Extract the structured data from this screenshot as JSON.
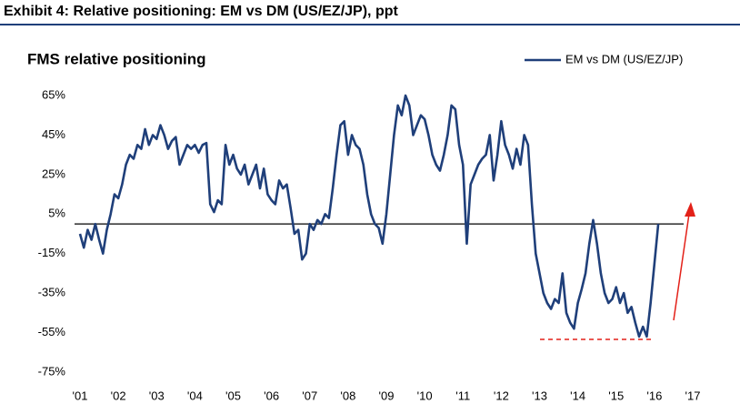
{
  "header": {
    "title": "Exhibit 4: Relative positioning: EM vs DM (US/EZ/JP), ppt"
  },
  "chart_data": {
    "type": "line",
    "title": "FMS relative positioning",
    "x": [
      2001.0,
      2001.1,
      2001.2,
      2001.3,
      2001.4,
      2001.5,
      2001.6,
      2001.7,
      2001.8,
      2001.9,
      2002.0,
      2002.1,
      2002.2,
      2002.3,
      2002.4,
      2002.5,
      2002.6,
      2002.7,
      2002.8,
      2002.9,
      2003.0,
      2003.1,
      2003.2,
      2003.3,
      2003.4,
      2003.5,
      2003.6,
      2003.7,
      2003.8,
      2003.9,
      2004.0,
      2004.1,
      2004.2,
      2004.3,
      2004.4,
      2004.5,
      2004.6,
      2004.7,
      2004.8,
      2004.9,
      2005.0,
      2005.1,
      2005.2,
      2005.3,
      2005.4,
      2005.5,
      2005.6,
      2005.7,
      2005.8,
      2005.9,
      2006.0,
      2006.1,
      2006.2,
      2006.3,
      2006.4,
      2006.5,
      2006.6,
      2006.7,
      2006.8,
      2006.9,
      2007.0,
      2007.1,
      2007.2,
      2007.3,
      2007.4,
      2007.5,
      2007.6,
      2007.7,
      2007.8,
      2007.9,
      2008.0,
      2008.1,
      2008.2,
      2008.3,
      2008.4,
      2008.5,
      2008.6,
      2008.7,
      2008.8,
      2008.9,
      2009.0,
      2009.1,
      2009.2,
      2009.3,
      2009.4,
      2009.5,
      2009.6,
      2009.7,
      2009.8,
      2009.9,
      2010.0,
      2010.1,
      2010.2,
      2010.3,
      2010.4,
      2010.5,
      2010.6,
      2010.7,
      2010.8,
      2010.9,
      2011.0,
      2011.1,
      2011.2,
      2011.3,
      2011.4,
      2011.5,
      2011.6,
      2011.7,
      2011.8,
      2011.9,
      2012.0,
      2012.1,
      2012.2,
      2012.3,
      2012.4,
      2012.5,
      2012.6,
      2012.7,
      2012.8,
      2012.9,
      2013.0,
      2013.1,
      2013.2,
      2013.3,
      2013.4,
      2013.5,
      2013.6,
      2013.7,
      2013.8,
      2013.9,
      2014.0,
      2014.1,
      2014.2,
      2014.3,
      2014.4,
      2014.5,
      2014.6,
      2014.7,
      2014.8,
      2014.9,
      2015.0,
      2015.1,
      2015.2,
      2015.3,
      2015.4,
      2015.5,
      2015.6,
      2015.7,
      2015.8,
      2015.9,
      2016.0,
      2016.1
    ],
    "series": [
      {
        "name": "EM vs DM (US/EZ/JP)",
        "color": "#1f3f7a",
        "values": [
          -5,
          -12,
          -3,
          -8,
          0,
          -8,
          -15,
          -3,
          5,
          15,
          13,
          20,
          30,
          35,
          33,
          40,
          38,
          48,
          40,
          45,
          43,
          50,
          45,
          38,
          42,
          44,
          30,
          35,
          40,
          38,
          40,
          36,
          40,
          41,
          10,
          6,
          12,
          10,
          40,
          30,
          35,
          28,
          25,
          30,
          20,
          25,
          30,
          18,
          28,
          15,
          12,
          10,
          22,
          18,
          20,
          8,
          -5,
          -3,
          -18,
          -15,
          0,
          -3,
          2,
          0,
          5,
          3,
          18,
          35,
          50,
          52,
          35,
          45,
          40,
          38,
          30,
          15,
          5,
          0,
          -2,
          -10,
          5,
          25,
          45,
          60,
          55,
          65,
          60,
          45,
          50,
          55,
          53,
          45,
          35,
          30,
          27,
          35,
          45,
          60,
          58,
          40,
          30,
          -10,
          20,
          25,
          30,
          33,
          35,
          45,
          22,
          35,
          52,
          40,
          35,
          28,
          38,
          30,
          45,
          40,
          10,
          -15,
          -25,
          -35,
          -40,
          -43,
          -38,
          -40,
          -25,
          -45,
          -50,
          -53,
          -40,
          -33,
          -25,
          -10,
          2,
          -10,
          -25,
          -35,
          -40,
          -38,
          -32,
          -40,
          -35,
          -45,
          -42,
          -50,
          -57,
          -52,
          -57,
          -40,
          -20,
          0
        ]
      }
    ],
    "xlim": [
      2001,
      2017
    ],
    "xticks": [
      {
        "value": 2001,
        "label": "'01"
      },
      {
        "value": 2002,
        "label": "'02"
      },
      {
        "value": 2003,
        "label": "'03"
      },
      {
        "value": 2004,
        "label": "'04"
      },
      {
        "value": 2005,
        "label": "'05"
      },
      {
        "value": 2006,
        "label": "'06"
      },
      {
        "value": 2007,
        "label": "'07"
      },
      {
        "value": 2008,
        "label": "'08"
      },
      {
        "value": 2009,
        "label": "'09"
      },
      {
        "value": 2010,
        "label": "'10"
      },
      {
        "value": 2011,
        "label": "'11"
      },
      {
        "value": 2012,
        "label": "'12"
      },
      {
        "value": 2013,
        "label": "'13"
      },
      {
        "value": 2014,
        "label": "'14"
      },
      {
        "value": 2015,
        "label": "'15"
      },
      {
        "value": 2016,
        "label": "'16"
      },
      {
        "value": 2017,
        "label": "'17"
      }
    ],
    "ylim": [
      -75,
      65
    ],
    "yticks": [
      {
        "value": 65,
        "label": "65%"
      },
      {
        "value": 45,
        "label": "45%"
      },
      {
        "value": 25,
        "label": "25%"
      },
      {
        "value": 5,
        "label": "5%"
      },
      {
        "value": -15,
        "label": "-15%"
      },
      {
        "value": -35,
        "label": "-35%"
      },
      {
        "value": -55,
        "label": "-55%"
      },
      {
        "value": -75,
        "label": "-75%"
      }
    ],
    "legend": "top-right"
  }
}
